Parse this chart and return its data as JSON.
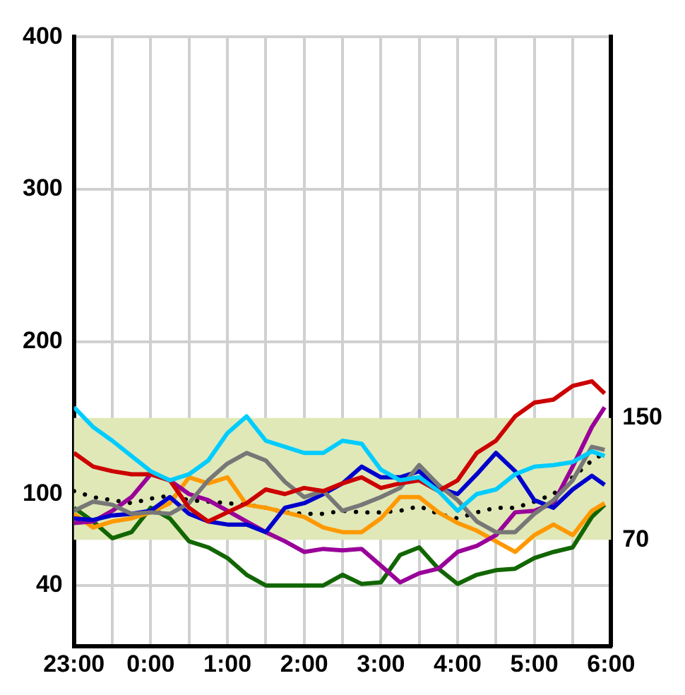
{
  "chart_data": {
    "type": "line",
    "x": [
      "--01-01T23:00",
      "--01-01T23:15",
      "--01-01T23:30",
      "--01-01T23:45",
      "--01-02T00:00",
      "--01-02T00:15",
      "--01-02T00:30",
      "--01-02T00:45",
      "--01-02T01:00",
      "--01-02T01:15",
      "--01-02T01:30",
      "--01-02T01:45",
      "--01-02T02:00",
      "--01-02T02:15",
      "--01-02T02:30",
      "--01-02T02:45",
      "--01-02T03:00",
      "--01-02T03:15",
      "--01-02T03:30",
      "--01-02T03:45",
      "--01-02T04:00",
      "--01-02T04:15",
      "--01-02T04:30",
      "--01-02T04:45",
      "--01-02T05:00",
      "--01-02T05:15",
      "--01-02T05:30",
      "--01-02T05:45",
      "--01-02T05:55"
    ],
    "series": [
      {
        "color": "#00ccff",
        "values": [
          157,
          144,
          135,
          125,
          115,
          109,
          113,
          122,
          140,
          151,
          135,
          131,
          127,
          127,
          135,
          133,
          116,
          109,
          111,
          102,
          89,
          100,
          103,
          113,
          118,
          119,
          121,
          128,
          125
        ]
      },
      {
        "color": "#cc0000",
        "values": [
          127,
          118,
          115,
          113,
          113,
          109,
          91,
          82,
          88,
          94,
          103,
          100,
          104,
          102,
          107,
          111,
          104,
          107,
          109,
          102,
          109,
          127,
          135,
          151,
          160,
          162,
          171,
          174,
          166
        ]
      },
      {
        "color": "#777777",
        "values": [
          89,
          95,
          93,
          87,
          88,
          87,
          94,
          109,
          120,
          127,
          122,
          108,
          98,
          102,
          89,
          93,
          98,
          104,
          119,
          106,
          96,
          82,
          75,
          75,
          87,
          96,
          109,
          131,
          129
        ]
      },
      {
        "color": "#0000cc",
        "values": [
          84,
          83,
          86,
          87,
          89,
          98,
          87,
          82,
          80,
          80,
          75,
          91,
          94,
          100,
          107,
          118,
          111,
          111,
          115,
          104,
          100,
          113,
          127,
          115,
          96,
          91,
          103,
          112,
          106
        ]
      },
      {
        "color": "#990099",
        "values": [
          81,
          82,
          89,
          98,
          113,
          109,
          100,
          96,
          89,
          82,
          75,
          69,
          62,
          64,
          63,
          64,
          53,
          42,
          48,
          51,
          62,
          66,
          73,
          88,
          89,
          94,
          118,
          144,
          157
        ]
      },
      {
        "color": "#ff9900",
        "values": [
          87,
          78,
          82,
          84,
          88,
          94,
          111,
          107,
          111,
          93,
          91,
          88,
          85,
          78,
          75,
          75,
          84,
          98,
          98,
          88,
          81,
          76,
          69,
          62,
          73,
          80,
          73,
          89,
          94
        ]
      },
      {
        "color": "#116600",
        "values": [
          91,
          82,
          71,
          75,
          91,
          84,
          69,
          65,
          58,
          47,
          40,
          40,
          40,
          40,
          47,
          41,
          42,
          60,
          65,
          51,
          41,
          47,
          50,
          51,
          58,
          62,
          65,
          85,
          93
        ]
      },
      {
        "color": "#000000",
        "line_style": "dotted",
        "values": [
          102,
          98,
          96,
          94,
          97,
          99,
          96,
          95,
          94,
          93,
          91,
          88,
          87,
          87,
          89,
          88,
          88,
          89,
          92,
          87,
          84,
          88,
          91,
          91,
          95,
          100,
          111,
          122,
          127
        ]
      }
    ],
    "xlim": [
      "--01-01T23:00",
      "--01-02T06:00"
    ],
    "xticks": [
      {
        "value": "--01-01T23:00",
        "label": "23:00"
      },
      {
        "value": "--01-01T23:30",
        "label": null
      },
      {
        "value": "--01-02T00:00",
        "label": "0:00"
      },
      {
        "value": "--01-02T00:30",
        "label": null
      },
      {
        "value": "--01-02T01:00",
        "label": "1:00"
      },
      {
        "value": "--01-02T01:30",
        "label": null
      },
      {
        "value": "--01-02T02:00",
        "label": "2:00"
      },
      {
        "value": "--01-02T02:30",
        "label": null
      },
      {
        "value": "--01-02T03:00",
        "label": "3:00"
      },
      {
        "value": "--01-02T03:30",
        "label": null
      },
      {
        "value": "--01-02T04:00",
        "label": "4:00"
      },
      {
        "value": "--01-02T04:30",
        "label": null
      },
      {
        "value": "--01-02T05:00",
        "label": "5:00"
      },
      {
        "value": "--01-02T05:30",
        "label": null
      },
      {
        "value": "--01-02T06:00",
        "label": "6:00"
      }
    ],
    "ylim": [
      0,
      400
    ],
    "yticks": [
      40,
      100,
      200,
      300,
      400
    ],
    "y2lim": [
      0,
      400
    ],
    "y2ticks": [
      70,
      150
    ],
    "bands": [
      {
        "axis": "y",
        "from": 70,
        "to": 150,
        "color": "#e0e8b8"
      }
    ],
    "grid": true,
    "legend": false,
    "marker": "none",
    "line_style": "solid"
  }
}
